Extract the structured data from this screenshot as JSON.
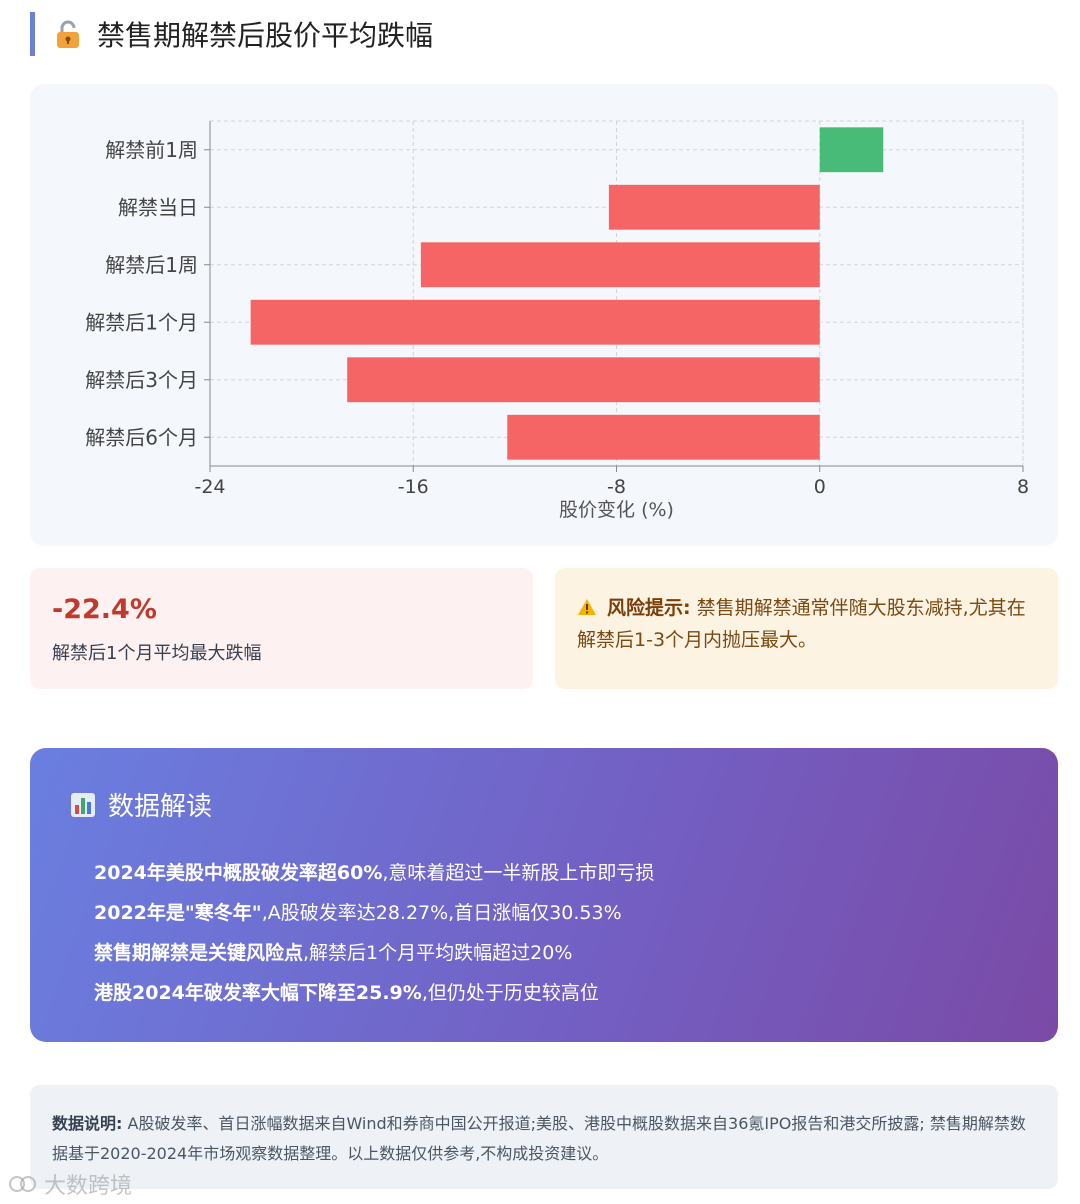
{
  "header": {
    "title": "禁售期解禁后股价平均跌幅",
    "icon": "unlock-icon"
  },
  "chart_data": {
    "type": "bar",
    "orientation": "horizontal",
    "categories": [
      "解禁前1周",
      "解禁当日",
      "解禁后1周",
      "解禁后1个月",
      "解禁后3个月",
      "解禁后6个月"
    ],
    "values": [
      2.5,
      -8.3,
      -15.7,
      -22.4,
      -18.6,
      -12.3
    ],
    "xlabel": "股价变化 (%)",
    "xlim": [
      -24,
      8
    ],
    "xticks": [
      "-24",
      "-16",
      "-8",
      "0",
      "8"
    ],
    "grid": true,
    "colors": {
      "positive": "#48bb78",
      "negative": "#f56565"
    }
  },
  "stat": {
    "value": "-22.4%",
    "label": "解禁后1个月平均最大跌幅"
  },
  "risk": {
    "icon": "warning-icon",
    "title": "风险提示:",
    "text": " 禁售期解禁通常伴随大股东减持,尤其在解禁后1-3个月内抛压最大。"
  },
  "insight": {
    "icon": "bar-chart-icon",
    "title": "数据解读",
    "items": [
      {
        "bold": "2024年美股中概股破发率超60%",
        "rest": ",意味着超过一半新股上市即亏损"
      },
      {
        "bold": "2022年是\"寒冬年\"",
        "rest": ",A股破发率达28.27%,首日涨幅仅30.53%"
      },
      {
        "bold": "禁售期解禁是关键风险点",
        "rest": ",解禁后1个月平均跌幅超过20%"
      },
      {
        "bold": "港股2024年破发率大幅下降至25.9%",
        "rest": ",但仍处于历史较高位"
      }
    ]
  },
  "note": {
    "label": "数据说明:",
    "text": " A股破发率、首日涨幅数据来自Wind和券商中国公开报道;美股、港股中概股数据来自36氪IPO报告和港交所披露; 禁售期解禁数据基于2020-2024年市场观察数据整理。以上数据仅供参考,不构成投资建议。"
  },
  "watermark": {
    "text": "大数跨境"
  }
}
